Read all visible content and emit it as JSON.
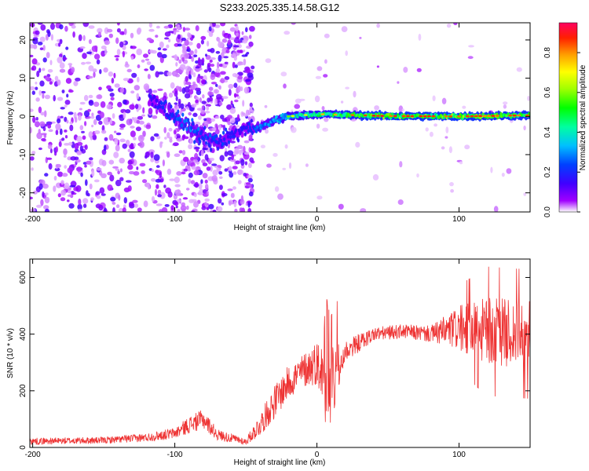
{
  "title": "S233.2025.335.14.58.G12",
  "chart_data": [
    {
      "type": "heatmap",
      "panel": "spectrogram",
      "xlabel": "Height of straight line (km)",
      "ylabel": "Frequency (Hz)",
      "xlim": [
        -202,
        150
      ],
      "ylim": [
        -25,
        24.5
      ],
      "xticks": [
        -200,
        -100,
        0,
        100
      ],
      "yticks": [
        -20,
        -10,
        0,
        10,
        20
      ],
      "colorbar": {
        "label": "Normalized spectral amplitude",
        "range": [
          0,
          0.95
        ],
        "ticks": [
          0.0,
          0.2,
          0.4,
          0.6,
          0.8
        ],
        "tick_labels": [
          "0.0",
          "0.2",
          "0.4",
          "0.6",
          "0.8"
        ],
        "colormap": [
          "#ffffff",
          "#a000ff",
          "#4000ff",
          "#0040ff",
          "#00c0ff",
          "#00ffa0",
          "#00ff00",
          "#a0ff00",
          "#ffff00",
          "#ffa000",
          "#ff2000",
          "#ff0060"
        ]
      },
      "signal_track": {
        "description_points": [
          {
            "x": -115,
            "freq": 4
          },
          {
            "x": -100,
            "freq": 0
          },
          {
            "x": -85,
            "freq": -4
          },
          {
            "x": -70,
            "freq": -7
          },
          {
            "x": -50,
            "freq": -3
          },
          {
            "x": -40,
            "freq": -3
          },
          {
            "x": -30,
            "freq": -1
          },
          {
            "x": -20,
            "freq": 0
          },
          {
            "x": 0,
            "freq": 0.6
          },
          {
            "x": 50,
            "freq": 0.1
          },
          {
            "x": 100,
            "freq": 0
          },
          {
            "x": 150,
            "freq": 0.3
          }
        ],
        "amplitude_points": [
          {
            "x": -115,
            "amp": 0.3
          },
          {
            "x": -90,
            "amp": 0.45
          },
          {
            "x": -50,
            "amp": 0.3
          },
          {
            "x": -40,
            "amp": 0.45
          },
          {
            "x": -20,
            "amp": 0.6
          },
          {
            "x": 0,
            "amp": 0.7
          },
          {
            "x": 40,
            "amp": 0.85
          },
          {
            "x": 100,
            "amp": 0.85
          },
          {
            "x": 150,
            "amp": 0.8
          }
        ],
        "noise_region_end_x": -45
      }
    },
    {
      "type": "line",
      "panel": "snr",
      "xlabel": "Height of straight line (km)",
      "ylabel": "SNR (10 * v/v)",
      "xlim": [
        -202,
        150
      ],
      "ylim": [
        0,
        665
      ],
      "xticks": [
        -200,
        -100,
        0,
        100
      ],
      "yticks": [
        0,
        200,
        400,
        600
      ],
      "color": "#ee3333",
      "series_envelope": [
        {
          "x": -202,
          "mean": 22,
          "spread": 12
        },
        {
          "x": -150,
          "mean": 25,
          "spread": 12
        },
        {
          "x": -120,
          "mean": 35,
          "spread": 15
        },
        {
          "x": -100,
          "mean": 50,
          "spread": 20
        },
        {
          "x": -90,
          "mean": 80,
          "spread": 30
        },
        {
          "x": -80,
          "mean": 100,
          "spread": 35
        },
        {
          "x": -70,
          "mean": 45,
          "spread": 20
        },
        {
          "x": -50,
          "mean": 20,
          "spread": 12
        },
        {
          "x": -40,
          "mean": 80,
          "spread": 40
        },
        {
          "x": -30,
          "mean": 160,
          "spread": 60
        },
        {
          "x": -20,
          "mean": 230,
          "spread": 60
        },
        {
          "x": -10,
          "mean": 270,
          "spread": 60
        },
        {
          "x": 0,
          "mean": 300,
          "spread": 80
        },
        {
          "x": 10,
          "mean": 200,
          "spread": 150
        },
        {
          "x": 20,
          "mean": 340,
          "spread": 40
        },
        {
          "x": 40,
          "mean": 400,
          "spread": 25
        },
        {
          "x": 60,
          "mean": 410,
          "spread": 25
        },
        {
          "x": 80,
          "mean": 400,
          "spread": 30
        },
        {
          "x": 100,
          "mean": 420,
          "spread": 80
        },
        {
          "x": 120,
          "mean": 410,
          "spread": 120
        },
        {
          "x": 150,
          "mean": 400,
          "spread": 120
        }
      ]
    }
  ]
}
